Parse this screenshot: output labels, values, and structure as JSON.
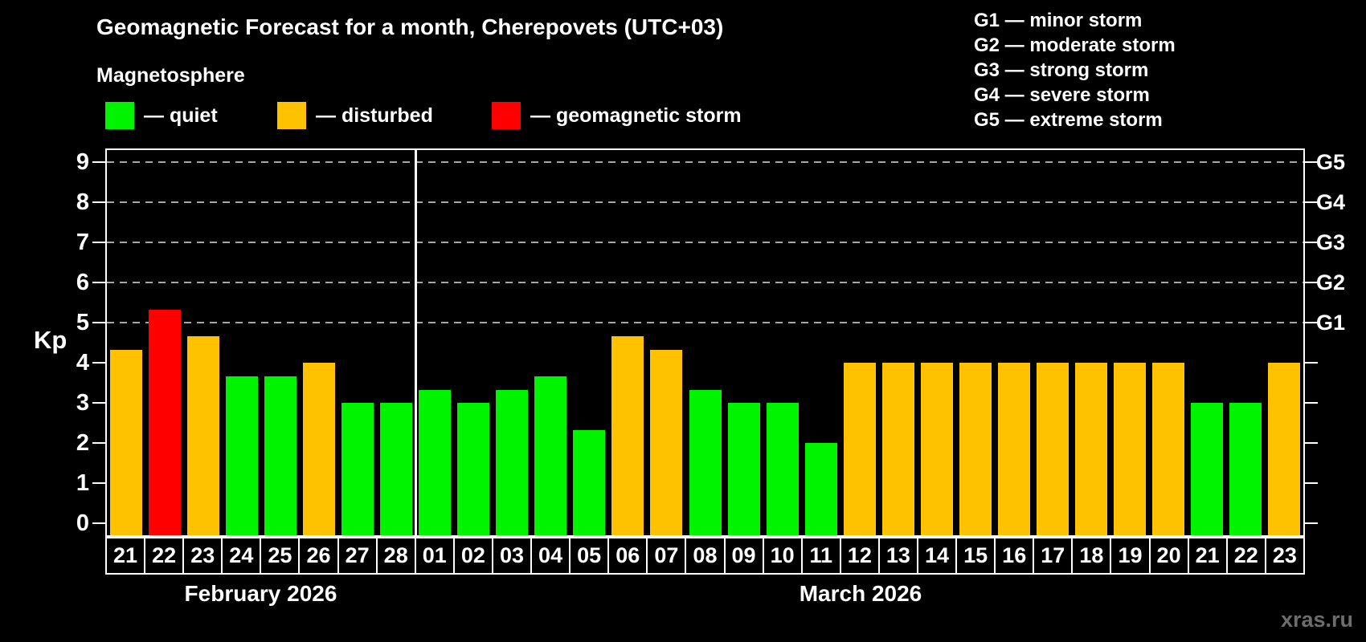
{
  "title": "Geomagnetic Forecast for a month, Cherepovets (UTC+03)",
  "subtitle": "Magnetosphere",
  "legend": {
    "items": [
      {
        "key": "quiet",
        "label": "— quiet",
        "color": "#00f400"
      },
      {
        "key": "disturbed",
        "label": "— disturbed",
        "color": "#ffc200"
      },
      {
        "key": "storm",
        "label": "— geomagnetic storm",
        "color": "#ff0000"
      }
    ]
  },
  "storm_scale": [
    {
      "label": "G1 — minor storm"
    },
    {
      "label": "G2 — moderate storm"
    },
    {
      "label": "G3 — strong storm"
    },
    {
      "label": "G4 — severe storm"
    },
    {
      "label": "G5 — extreme storm"
    }
  ],
  "axis": {
    "ylabel": "Kp",
    "left_ticks": [
      "0",
      "1",
      "2",
      "3",
      "4",
      "5",
      "6",
      "7",
      "8",
      "9"
    ],
    "right_labels": [
      {
        "kp": 5,
        "label": "G1"
      },
      {
        "kp": 6,
        "label": "G2"
      },
      {
        "kp": 7,
        "label": "G3"
      },
      {
        "kp": 8,
        "label": "G4"
      },
      {
        "kp": 9,
        "label": "G5"
      }
    ]
  },
  "months": [
    {
      "label": "February 2026",
      "days": 8
    },
    {
      "label": "March 2026",
      "days": 23
    }
  ],
  "watermark": "xras.ru",
  "chart_data": {
    "type": "bar",
    "title": "Geomagnetic Forecast for a month, Cherepovets (UTC+03)",
    "ylabel": "Kp",
    "ylim": [
      0,
      9.3
    ],
    "grid_levels": [
      5,
      6,
      7,
      8,
      9
    ],
    "g_levels": {
      "G1": 5,
      "G2": 6,
      "G3": 7,
      "G4": 8,
      "G5": 9
    },
    "legend_position": "top",
    "month_split_index": 8,
    "categories": [
      "21",
      "22",
      "23",
      "24",
      "25",
      "26",
      "27",
      "28",
      "01",
      "02",
      "03",
      "04",
      "05",
      "06",
      "07",
      "08",
      "09",
      "10",
      "11",
      "12",
      "13",
      "14",
      "15",
      "16",
      "17",
      "18",
      "19",
      "20",
      "21",
      "22",
      "23"
    ],
    "values": [
      4.33,
      5.33,
      4.67,
      3.67,
      3.67,
      4.0,
      3.0,
      3.0,
      3.33,
      3.0,
      3.33,
      3.67,
      2.33,
      4.67,
      4.33,
      3.33,
      3.0,
      3.0,
      2.0,
      4.0,
      4.0,
      4.0,
      4.0,
      4.0,
      4.0,
      4.0,
      4.0,
      4.0,
      3.0,
      3.0,
      4.0
    ],
    "statuses": [
      "disturbed",
      "storm",
      "disturbed",
      "quiet",
      "quiet",
      "disturbed",
      "quiet",
      "quiet",
      "quiet",
      "quiet",
      "quiet",
      "quiet",
      "quiet",
      "disturbed",
      "disturbed",
      "quiet",
      "quiet",
      "quiet",
      "quiet",
      "disturbed",
      "disturbed",
      "disturbed",
      "disturbed",
      "disturbed",
      "disturbed",
      "disturbed",
      "disturbed",
      "disturbed",
      "quiet",
      "quiet",
      "disturbed"
    ]
  }
}
